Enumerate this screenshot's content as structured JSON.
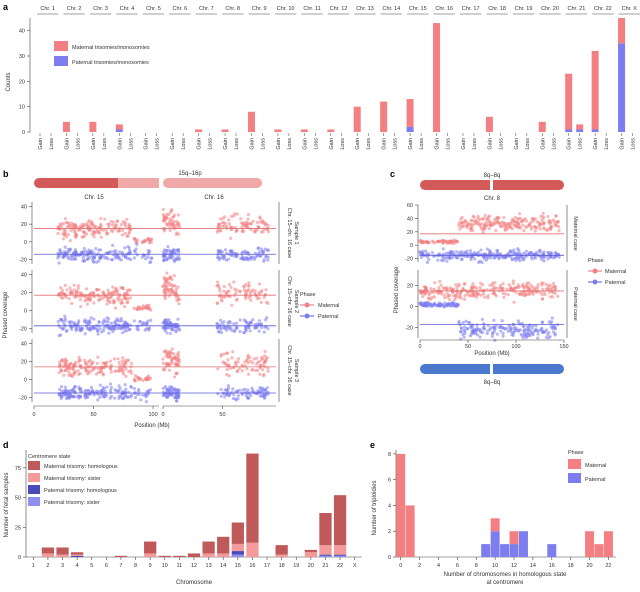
{
  "panel_labels": {
    "a": "a",
    "b": "b",
    "c": "c",
    "d": "d",
    "e": "e"
  },
  "colors": {
    "maternal": "#f47f82",
    "paternal": "#7d7df0",
    "mat_hom": "#c05a5a",
    "mat_sis": "#f49a9a",
    "pat_hom": "#4a4ab8",
    "pat_sis": "#8f8ff0",
    "mat_line": "#e07070",
    "pat_line": "#5a5ad8",
    "chr_red": "#d45a5a",
    "chr_pink": "#f0a8a8",
    "chr_blue": "#4a78cc"
  },
  "chart_data": [
    {
      "id": "a",
      "type": "bar",
      "ylabel": "Counts",
      "ylim": [
        0,
        45
      ],
      "yticks": [
        0,
        10,
        20,
        30,
        40
      ],
      "chromosomes": [
        "Chr. 1",
        "Chr. 2",
        "Chr. 3",
        "Chr. 4",
        "Chr. 5",
        "Chr. 6",
        "Chr. 7",
        "Chr. 8",
        "Chr. 9",
        "Chr. 10",
        "Chr. 11",
        "Chr. 12",
        "Chr. 13",
        "Chr. 14",
        "Chr. 15",
        "Chr. 16",
        "Chr. 17",
        "Chr. 18",
        "Chr. 19",
        "Chr. 20",
        "Chr. 21",
        "Chr. 22",
        "Chr. X"
      ],
      "sub_labels": [
        "Gain",
        "Loss"
      ],
      "legend": [
        "Maternal trisomies/monosomies",
        "Paternal trisomies/monosomies"
      ],
      "series": [
        {
          "name": "Maternal trisomies/monosomies",
          "gain": [
            0,
            4,
            4,
            2,
            0,
            0,
            1,
            1,
            8,
            1,
            1,
            1,
            10,
            12,
            11,
            43,
            0,
            6,
            0,
            4,
            22,
            31,
            10
          ],
          "loss": [
            0,
            0,
            0,
            0,
            0,
            0,
            0,
            0,
            0,
            0,
            0,
            0,
            0,
            0,
            0,
            0,
            0,
            0,
            0,
            0,
            2,
            0,
            0
          ]
        },
        {
          "name": "Paternal trisomies/monosomies",
          "gain": [
            0,
            0,
            0,
            1,
            0,
            0,
            0,
            0,
            0,
            0,
            0,
            0,
            0,
            0,
            2,
            0,
            0,
            0,
            0,
            0,
            1,
            1,
            35
          ],
          "loss": [
            0,
            0,
            0,
            0,
            0,
            0,
            0,
            0,
            0,
            0,
            0,
            0,
            0,
            0,
            0,
            0,
            0,
            0,
            0,
            0,
            1,
            0,
            0
          ]
        }
      ]
    },
    {
      "id": "b",
      "type": "scatter",
      "title_bar": "15q–16p",
      "left_chr": "Chr. 15",
      "right_chr": "Chr. 16",
      "ylabel": "Phased coverage",
      "xlabel": "Position (Mb)",
      "ylim": [
        -25,
        45
      ],
      "yticks": [
        -20,
        0,
        20,
        40
      ],
      "left_xticks": [
        0,
        50,
        100
      ],
      "right_xticks": [
        0,
        50
      ],
      "samples": [
        {
          "label": "Chr. 15–chr. 16 case",
          "sub": "Sample 1",
          "mat_level": 15,
          "pat_level": -14,
          "low_level": 2
        },
        {
          "label": "Chr. 15–chr. 16 case",
          "sub": "Sample 2",
          "mat_level": 17,
          "pat_level": -17,
          "low_level": 3
        },
        {
          "label": "Chr. 15–chr. 16 case",
          "sub": "Sample 3",
          "mat_level": 14,
          "pat_level": -15,
          "low_level": 1
        }
      ],
      "legend_title": "Phase",
      "legend": [
        "Maternal",
        "Paternal"
      ]
    },
    {
      "id": "c",
      "type": "scatter",
      "top_bar": "8q–8q",
      "bottom_bar": "8q–8q",
      "chr": "Chr. 8",
      "ylabel": "Phased coverage",
      "xlabel": "Position (Mb)",
      "top": {
        "label": "Maternal case",
        "ylim": [
          -25,
          60
        ],
        "yticks": [
          -20,
          0,
          20,
          40,
          60
        ],
        "mat_low": 5,
        "mat_high": 33,
        "pat": -15,
        "break": 40
      },
      "bottom": {
        "label": "Paternal case",
        "ylim": [
          -30,
          35
        ],
        "yticks": [
          -20,
          0,
          20
        ],
        "mat": 15,
        "pat_low": 2,
        "pat_high": -22,
        "break": 40
      },
      "xticks": [
        0,
        50,
        100,
        150
      ],
      "legend_title": "Phase",
      "legend": [
        "Maternal",
        "Paternal"
      ]
    },
    {
      "id": "d",
      "type": "bar",
      "ylabel": "Number of fetal samples",
      "xlabel": "Chromosome",
      "ylim": [
        0,
        90
      ],
      "yticks": [
        0,
        25,
        50,
        75
      ],
      "categories": [
        "1",
        "2",
        "3",
        "4",
        "5",
        "6",
        "7",
        "8",
        "9",
        "10",
        "11",
        "12",
        "13",
        "14",
        "15",
        "16",
        "17",
        "18",
        "19",
        "20",
        "21",
        "22",
        "X"
      ],
      "legend_title": "Centromere state",
      "series": [
        {
          "name": "Maternal trisomy: homologous",
          "values": [
            0,
            5,
            6,
            2,
            0,
            0,
            1,
            0,
            10,
            1,
            1,
            3,
            10,
            14,
            18,
            75,
            0,
            8,
            0,
            2,
            27,
            42,
            0
          ]
        },
        {
          "name": "Maternal trisomy: sister",
          "values": [
            0,
            3,
            2,
            1,
            0,
            0,
            0,
            0,
            3,
            0,
            0,
            0,
            3,
            3,
            6,
            12,
            0,
            2,
            0,
            4,
            8,
            8,
            0
          ]
        },
        {
          "name": "Paternal trisomy: homologous",
          "values": [
            0,
            0,
            0,
            1,
            0,
            0,
            0,
            0,
            0,
            0,
            0,
            0,
            0,
            0,
            3,
            0,
            0,
            0,
            0,
            0,
            1,
            1,
            0
          ]
        },
        {
          "name": "Paternal trisomy: sister",
          "values": [
            0,
            0,
            0,
            0,
            0,
            0,
            0,
            0,
            0,
            0,
            0,
            0,
            0,
            0,
            2,
            0,
            0,
            0,
            0,
            0,
            1,
            1,
            0
          ]
        }
      ]
    },
    {
      "id": "e",
      "type": "bar",
      "ylabel": "Number of triploidies",
      "xlabel": "Number of chromosomes in homologous state",
      "xlabel2": "at centromere",
      "ylim": [
        0,
        8.3
      ],
      "yticks": [
        0,
        2,
        4,
        6,
        8
      ],
      "xticks": [
        0,
        2,
        4,
        6,
        8,
        10,
        12,
        14,
        16,
        18,
        20,
        22
      ],
      "x": [
        0,
        1,
        9,
        10,
        11,
        12,
        13,
        16,
        20,
        21,
        22
      ],
      "series": [
        {
          "name": "Maternal",
          "values": [
            8,
            4,
            0,
            1,
            0,
            1,
            0,
            0,
            2,
            1,
            2
          ]
        },
        {
          "name": "Paternal",
          "values": [
            0,
            0,
            1,
            2,
            1,
            1,
            2,
            1,
            0,
            0,
            0
          ]
        }
      ],
      "legend_title": "Phase"
    }
  ]
}
